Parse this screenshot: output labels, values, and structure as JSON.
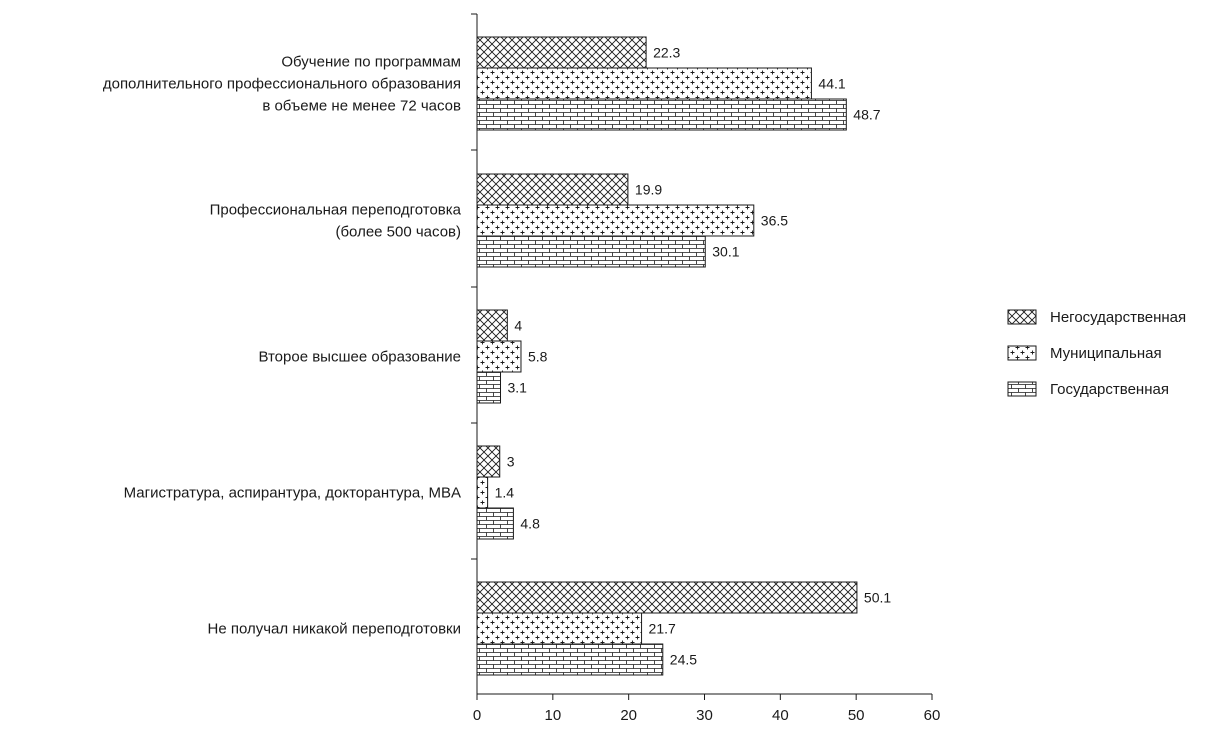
{
  "chart_data": {
    "type": "bar",
    "orientation": "horizontal",
    "categories": [
      [
        "Обучение по программам",
        "дополнительного профессионального образования",
        "в объеме не менее 72 часов"
      ],
      [
        "Профессиональная переподготовка",
        "(более 500 часов)"
      ],
      [
        "Второе высшее образование"
      ],
      [
        "Магистратура, аспирантура, докторантура, MBA"
      ],
      [
        "Не получал никакой переподготовки"
      ]
    ],
    "series": [
      {
        "name": "Негосударственная",
        "pattern": "crosshatch",
        "values": [
          22.3,
          19.9,
          4,
          3,
          50.1
        ],
        "labels": [
          "22.3",
          "19.9",
          "4",
          "3",
          "50.1"
        ]
      },
      {
        "name": "Муниципальная",
        "pattern": "plus",
        "values": [
          44.1,
          36.5,
          5.8,
          1.4,
          21.7
        ],
        "labels": [
          "44.1",
          "36.5",
          "5.8",
          "1.4",
          "21.7"
        ]
      },
      {
        "name": "Государственная",
        "pattern": "brick",
        "values": [
          48.7,
          30.1,
          3.1,
          4.8,
          24.5
        ],
        "labels": [
          "48.7",
          "30.1",
          "3.1",
          "4.8",
          "24.5"
        ]
      }
    ],
    "xlim": [
      0,
      60
    ],
    "xticks": [
      "0",
      "10",
      "20",
      "30",
      "40",
      "50",
      "60"
    ],
    "xlabel": "",
    "ylabel": "",
    "grid": false,
    "legend_position": "right",
    "colors": {
      "ink": "#1a1a1a",
      "fill": "#ffffff"
    }
  }
}
